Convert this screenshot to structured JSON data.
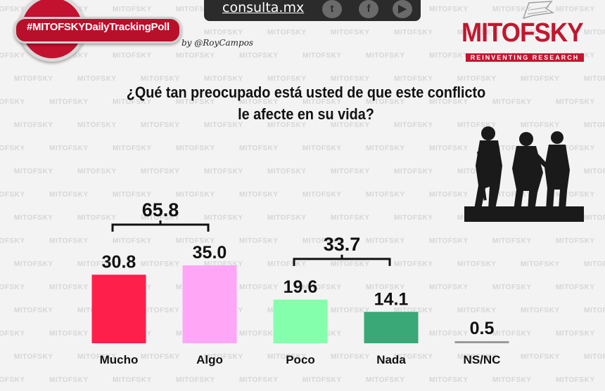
{
  "header": {
    "hashtag": "#MITOFSKYDailyTrackingPoll",
    "byline": "by @RoyCampos",
    "site": "consulta.mx",
    "social_icons": [
      "twitter-icon",
      "facebook-icon",
      "youtube-icon"
    ]
  },
  "brand": {
    "name": "MITOFSKY",
    "tagline": "REINVENTING RESEARCH",
    "watermark": "MITOFSKY",
    "color": "#c0172f"
  },
  "question": {
    "line1": "¿Qué tan preocupado está usted de que este conflicto",
    "line2": "le afecte en su vida?"
  },
  "chart_data": {
    "type": "bar",
    "title": "¿Qué tan preocupado está usted de que este conflicto le afecte en su vida?",
    "categories": [
      "Mucho",
      "Algo",
      "Poco",
      "Nada",
      "NS/NC"
    ],
    "values": [
      30.8,
      35.0,
      19.6,
      14.1,
      0.5
    ],
    "value_labels": [
      "30.8",
      "35.0",
      "19.6",
      "14.1",
      "0.5"
    ],
    "colors": [
      "#ff1f4b",
      "#ffa6f7",
      "#84ffac",
      "#3aa877",
      "#9a9a9a"
    ],
    "ylim": [
      0,
      40
    ],
    "groups": [
      {
        "label": "65.8",
        "categories": [
          "Mucho",
          "Algo"
        ]
      },
      {
        "label": "33.7",
        "categories": [
          "Poco",
          "Nada"
        ]
      }
    ],
    "xlabel": "",
    "ylabel": ""
  }
}
